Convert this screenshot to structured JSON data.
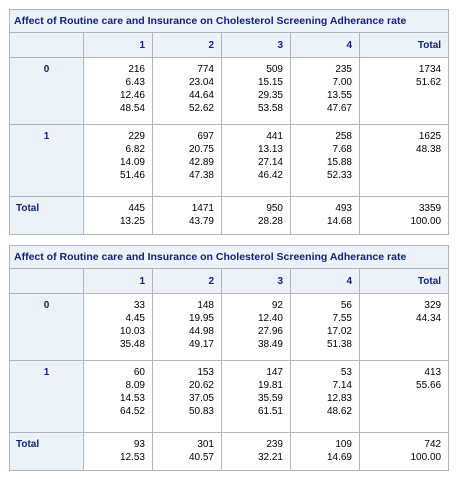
{
  "tables": [
    {
      "title": "Affect of Routine care and Insurance on Cholesterol Screening Adherance rate",
      "columns": [
        "1",
        "2",
        "3",
        "4",
        "Total"
      ],
      "rows": [
        {
          "label": "0",
          "cells": [
            [
              "216",
              "6.43",
              "12.46",
              "48.54"
            ],
            [
              "774",
              "23.04",
              "44.64",
              "52.62"
            ],
            [
              "509",
              "15.15",
              "29.35",
              "53.58"
            ],
            [
              "235",
              "7.00",
              "13.55",
              "47.67"
            ],
            [
              "1734",
              "51.62"
            ]
          ]
        },
        {
          "label": "1",
          "cells": [
            [
              "229",
              "6.82",
              "14.09",
              "51.46"
            ],
            [
              "697",
              "20.75",
              "42.89",
              "47.38"
            ],
            [
              "441",
              "13.13",
              "27.14",
              "46.42"
            ],
            [
              "258",
              "7.68",
              "15.88",
              "52.33"
            ],
            [
              "1625",
              "48.38"
            ]
          ]
        },
        {
          "label": "Total",
          "cells": [
            [
              "445",
              "13.25"
            ],
            [
              "1471",
              "43.79"
            ],
            [
              "950",
              "28.28"
            ],
            [
              "493",
              "14.68"
            ],
            [
              "3359",
              "100.00"
            ]
          ]
        }
      ]
    },
    {
      "title": "Affect of Routine care and Insurance on Cholesterol Screening Adherance rate",
      "columns": [
        "1",
        "2",
        "3",
        "4",
        "Total"
      ],
      "rows": [
        {
          "label": "0",
          "cells": [
            [
              "33",
              "4.45",
              "10.03",
              "35.48"
            ],
            [
              "148",
              "19.95",
              "44.98",
              "49.17"
            ],
            [
              "92",
              "12.40",
              "27.96",
              "38.49"
            ],
            [
              "56",
              "7.55",
              "17.02",
              "51.38"
            ],
            [
              "329",
              "44.34"
            ]
          ]
        },
        {
          "label": "1",
          "cells": [
            [
              "60",
              "8.09",
              "14.53",
              "64.52"
            ],
            [
              "153",
              "20.62",
              "37.05",
              "50.83"
            ],
            [
              "147",
              "19.81",
              "35.59",
              "61.51"
            ],
            [
              "53",
              "7.14",
              "12.83",
              "48.62"
            ],
            [
              "413",
              "55.66"
            ]
          ]
        },
        {
          "label": "Total",
          "cells": [
            [
              "93",
              "12.53"
            ],
            [
              "301",
              "40.57"
            ],
            [
              "239",
              "32.21"
            ],
            [
              "109",
              "14.69"
            ],
            [
              "742",
              "100.00"
            ]
          ]
        }
      ]
    }
  ]
}
